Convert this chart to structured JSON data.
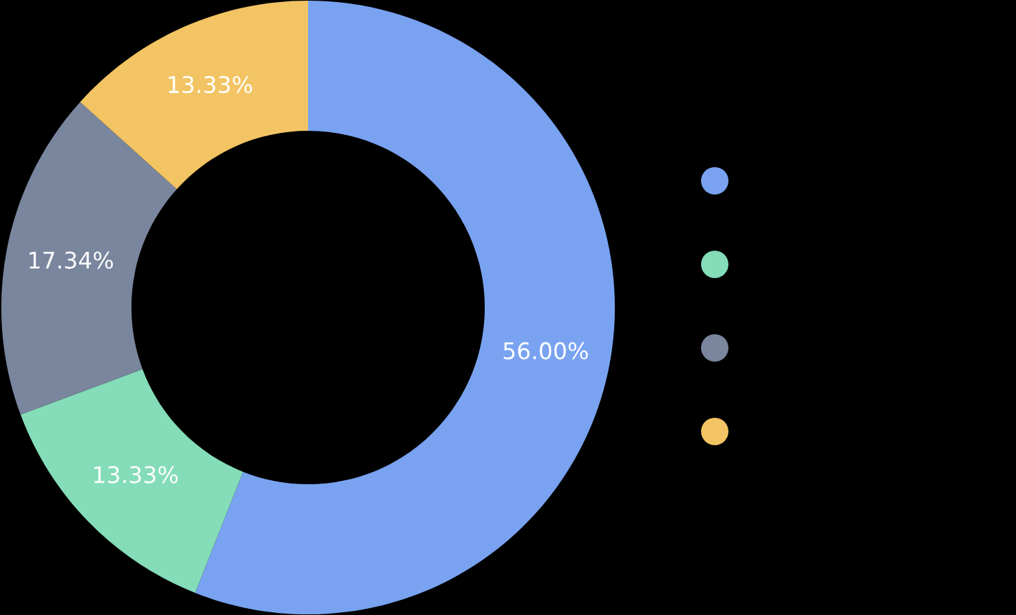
{
  "chart_data": {
    "type": "donut",
    "categories": [
      null,
      null,
      null,
      null
    ],
    "values": [
      56.0,
      13.33,
      17.34,
      13.33
    ],
    "colors": [
      "#79a3f1",
      "#84dcb9",
      "#7a869e",
      "#f3c463"
    ],
    "value_labels": [
      "56.00%",
      "13.33%",
      "17.34%",
      "13.33%"
    ]
  }
}
